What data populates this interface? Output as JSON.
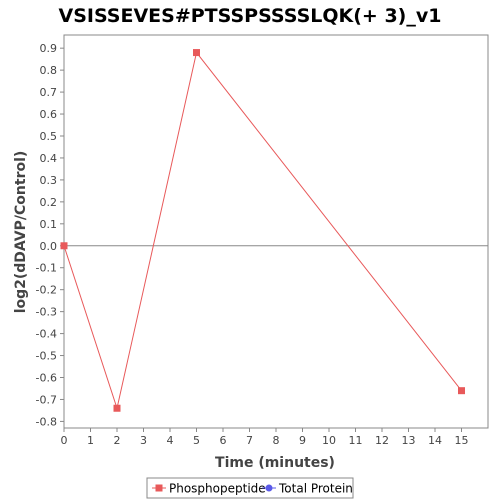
{
  "chart_data": {
    "type": "line",
    "title": "VSISSEVES#PTSSPSSSSLQK(+ 3)_v1",
    "xlabel": "Time (minutes)",
    "ylabel": "log2(dDAVP/Control)",
    "xlim": [
      0,
      16
    ],
    "ylim": [
      -0.83,
      0.96
    ],
    "x_ticks": [
      0,
      1,
      2,
      3,
      4,
      5,
      6,
      7,
      8,
      9,
      10,
      11,
      12,
      13,
      14,
      15
    ],
    "y_ticks": [
      -0.8,
      -0.7,
      -0.6,
      -0.5,
      -0.4,
      -0.3,
      -0.2,
      -0.1,
      0.0,
      0.1,
      0.2,
      0.3,
      0.4,
      0.5,
      0.6,
      0.7,
      0.8,
      0.9
    ],
    "y_tick_labels": [
      "-0.8",
      "-0.7",
      "-0.6",
      "-0.5",
      "-0.4",
      "-0.3",
      "-0.2",
      "-0.1",
      "0.0",
      "0.1",
      "0.2",
      "0.3",
      "0.4",
      "0.5",
      "0.6",
      "0.7",
      "0.8",
      "0.9"
    ],
    "grid": false,
    "zero_line": true,
    "legend_position": "bottom",
    "series": [
      {
        "name": "Phosphopeptide",
        "color": "#e8595a",
        "marker": "square",
        "x": [
          0,
          2,
          5,
          15
        ],
        "y": [
          0.0,
          -0.74,
          0.88,
          -0.66
        ]
      },
      {
        "name": "Total Protein",
        "color": "#5a5ae8",
        "marker": "circle",
        "x": [],
        "y": []
      }
    ]
  }
}
